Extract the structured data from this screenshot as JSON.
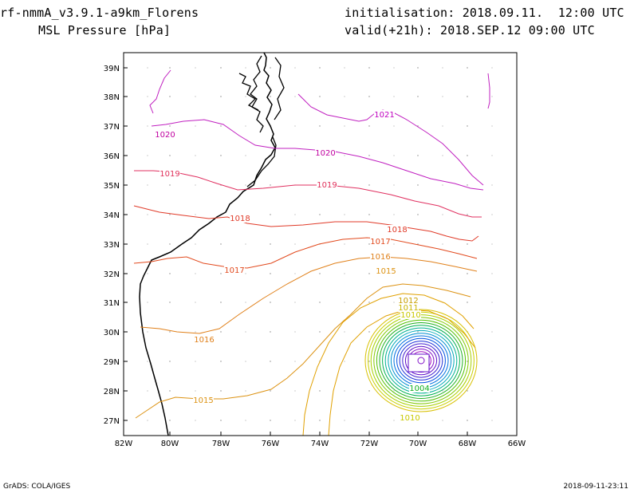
{
  "header": {
    "model": "rf-nmmA_v3.9.1-a9km_Florens",
    "variable": "MSL Pressure [hPa]",
    "init_label": "initialisation:",
    "init_value": "2018.09.11.  12:00 UTC",
    "valid_label": "valid(+21h):",
    "valid_value": "2018.SEP.12 09:00 UTC"
  },
  "footer": {
    "credit": "GrADS: COLA/IGES",
    "timestamp": "2018-09-11-23:11"
  },
  "map": {
    "lat_ticks": [
      "27N",
      "28N",
      "29N",
      "30N",
      "31N",
      "32N",
      "33N",
      "34N",
      "35N",
      "36N",
      "37N",
      "38N",
      "39N"
    ],
    "lon_ticks": [
      "82W",
      "80W",
      "78W",
      "76W",
      "74W",
      "72W",
      "70W",
      "68W",
      "66W"
    ],
    "contour_labels": [
      {
        "text": "1021",
        "color": "#c000c0"
      },
      {
        "text": "1020",
        "color": "#c000a0"
      },
      {
        "text": "1020",
        "color": "#c000a0"
      },
      {
        "text": "1019",
        "color": "#e0305a"
      },
      {
        "text": "1019",
        "color": "#e0305a"
      },
      {
        "text": "1018",
        "color": "#e03a28"
      },
      {
        "text": "1018",
        "color": "#e03a28"
      },
      {
        "text": "1017",
        "color": "#e24a1e"
      },
      {
        "text": "1017",
        "color": "#e24a1e"
      },
      {
        "text": "1016",
        "color": "#e0801a"
      },
      {
        "text": "1016",
        "color": "#e0801a"
      },
      {
        "text": "1015",
        "color": "#dc9212"
      },
      {
        "text": "1015",
        "color": "#dc9212"
      },
      {
        "text": "1012",
        "color": "#c8a000"
      },
      {
        "text": "1011",
        "color": "#c8b400"
      },
      {
        "text": "1010",
        "color": "#c8c800"
      },
      {
        "text": "1010",
        "color": "#c8c800"
      },
      {
        "text": "1004",
        "color": "#10b020"
      }
    ]
  }
}
